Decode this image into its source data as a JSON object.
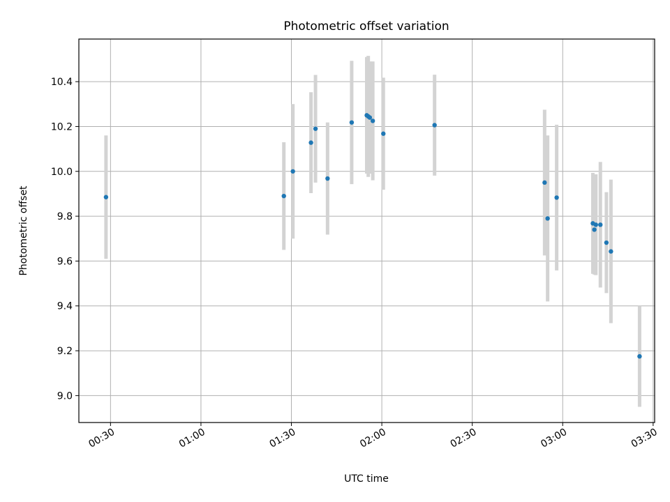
{
  "chart_data": {
    "type": "scatter",
    "title": "Photometric offset variation",
    "xlabel": "UTC time",
    "ylabel": "Photometric offset",
    "x_unit": "UTC time of day (HH:MM)",
    "xlim": [
      "00:19:30",
      "03:30:30"
    ],
    "ylim": [
      8.88,
      10.59
    ],
    "x_ticks": [
      "00:30",
      "01:00",
      "01:30",
      "02:00",
      "02:30",
      "03:00",
      "03:30"
    ],
    "y_ticks": [
      "9.0",
      "9.2",
      "9.4",
      "9.6",
      "9.8",
      "10.0",
      "10.2",
      "10.4"
    ],
    "grid": true,
    "legend": "none",
    "marker_color": "#1f77b4",
    "errorbar_color": "#d3d3d3",
    "series": [
      {
        "points": [
          {
            "x": "00:28:30",
            "y": 9.885,
            "err": 0.275
          },
          {
            "x": "01:27:30",
            "y": 9.89,
            "err": 0.24
          },
          {
            "x": "01:30:30",
            "y": 10.0,
            "err": 0.3
          },
          {
            "x": "01:36:30",
            "y": 10.128,
            "err": 0.225
          },
          {
            "x": "01:38:00",
            "y": 10.19,
            "err": 0.24
          },
          {
            "x": "01:42:00",
            "y": 9.968,
            "err": 0.25
          },
          {
            "x": "01:50:00",
            "y": 10.218,
            "err": 0.275
          },
          {
            "x": "01:55:00",
            "y": 10.25,
            "err": 0.26
          },
          {
            "x": "01:55:30",
            "y": 10.245,
            "err": 0.27
          },
          {
            "x": "01:56:00",
            "y": 10.24,
            "err": 0.25
          },
          {
            "x": "01:57:00",
            "y": 10.225,
            "err": 0.265
          },
          {
            "x": "02:00:30",
            "y": 10.168,
            "err": 0.25
          },
          {
            "x": "02:17:30",
            "y": 10.206,
            "err": 0.225
          },
          {
            "x": "02:54:00",
            "y": 9.95,
            "err": 0.325
          },
          {
            "x": "02:55:00",
            "y": 9.79,
            "err": 0.37
          },
          {
            "x": "02:58:00",
            "y": 9.883,
            "err": 0.325
          },
          {
            "x": "03:10:00",
            "y": 9.768,
            "err": 0.225
          },
          {
            "x": "03:10:30",
            "y": 9.74,
            "err": 0.2
          },
          {
            "x": "03:11:00",
            "y": 9.762,
            "err": 0.225
          },
          {
            "x": "03:12:30",
            "y": 9.762,
            "err": 0.28
          },
          {
            "x": "03:14:30",
            "y": 9.682,
            "err": 0.225
          },
          {
            "x": "03:16:00",
            "y": 9.643,
            "err": 0.32
          },
          {
            "x": "03:25:30",
            "y": 9.175,
            "err": 0.225
          }
        ]
      }
    ]
  }
}
